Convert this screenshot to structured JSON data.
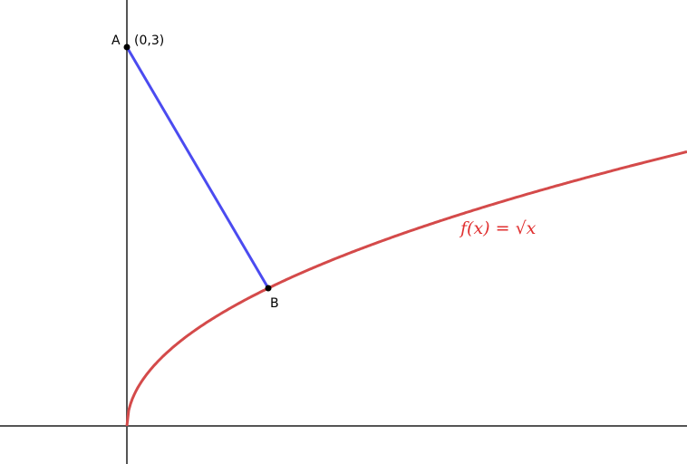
{
  "points": [
    {
      "label": "A",
      "coords": "(0,3)"
    },
    {
      "label": "B"
    }
  ],
  "function": {
    "label": "f(x) = √x"
  }
}
